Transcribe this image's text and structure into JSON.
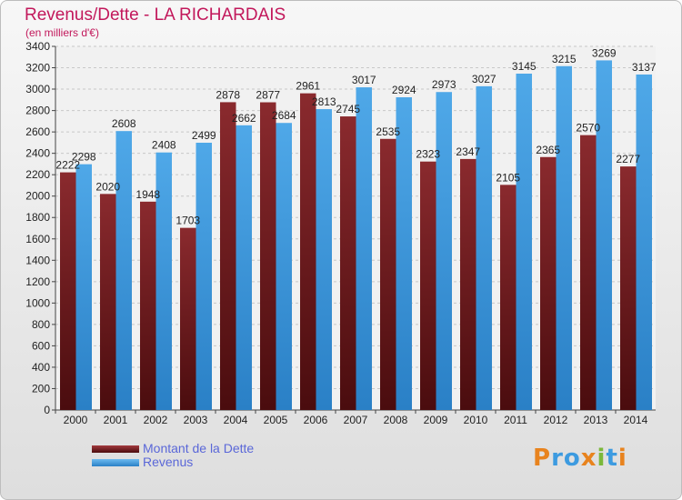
{
  "chart_data": {
    "type": "bar",
    "title": "Revenus/Dette - LA RICHARDAIS",
    "subtitle": "(en milliers d'€)",
    "categories": [
      "2000",
      "2001",
      "2002",
      "2003",
      "2004",
      "2005",
      "2006",
      "2007",
      "2008",
      "2009",
      "2010",
      "2011",
      "2012",
      "2013",
      "2014"
    ],
    "series": [
      {
        "name": "Montant de la Dette",
        "color": "#7a1f22",
        "values": [
          2222,
          2020,
          1948,
          1703,
          2878,
          2877,
          2961,
          2745,
          2535,
          2323,
          2347,
          2105,
          2365,
          2570,
          2277
        ],
        "labels": [
          "2222",
          "2020",
          "1948",
          "1703",
          "2878",
          "2877",
          "2961",
          "2745",
          "2535",
          "2323",
          "2347",
          "2105",
          "2365",
          "2570",
          "2277"
        ]
      },
      {
        "name": "Revenus",
        "color": "#3d9be0",
        "values": [
          2298,
          2608,
          2408,
          2499,
          2662,
          2684,
          2813,
          3017,
          2924,
          2973,
          3027,
          3145,
          3215,
          3269,
          3137
        ],
        "labels": [
          "2298",
          "2608",
          "2408",
          "2499",
          "2662",
          "2684",
          "2813",
          "3017",
          "2924",
          "2973",
          "3027",
          "3145",
          "3215",
          "3269",
          "3137"
        ]
      }
    ],
    "ylim": [
      0,
      3400
    ],
    "yticks": [
      0,
      200,
      400,
      600,
      800,
      1000,
      1200,
      1400,
      1600,
      1800,
      2000,
      2200,
      2400,
      2600,
      2800,
      3000,
      3200,
      3400
    ],
    "grid": true,
    "legend_position": "bottom-left"
  },
  "logo": {
    "text": "Proxiti",
    "letters": [
      {
        "ch": "P",
        "color": "#e8831e"
      },
      {
        "ch": "r",
        "color": "#3d9be0"
      },
      {
        "ch": "o",
        "color": "#3d9be0"
      },
      {
        "ch": "x",
        "color": "#e8831e"
      },
      {
        "ch": "i",
        "color": "#7bb83a"
      },
      {
        "ch": "t",
        "color": "#3d9be0"
      },
      {
        "ch": "i",
        "color": "#e8831e"
      }
    ]
  }
}
